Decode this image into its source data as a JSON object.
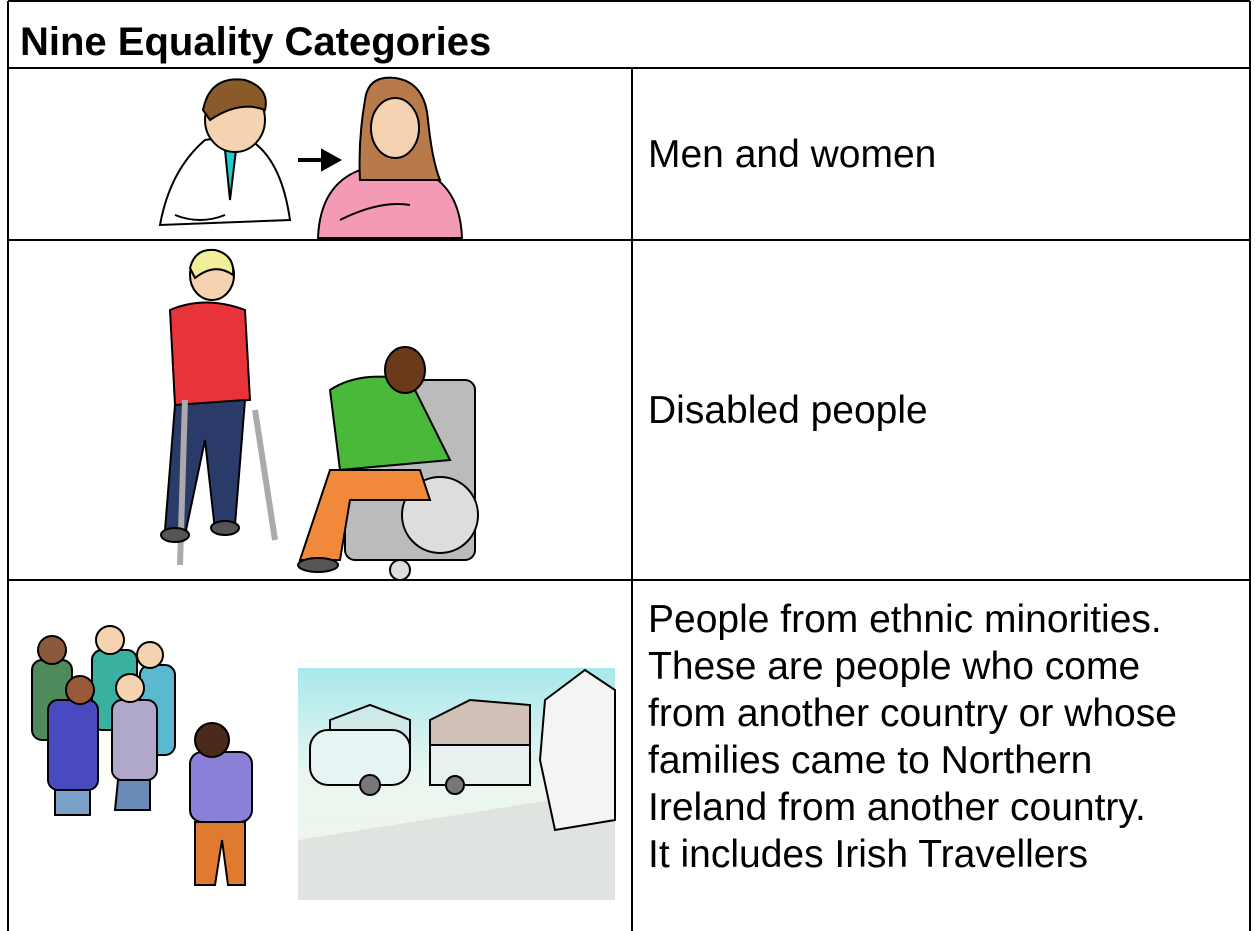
{
  "title": "Nine Equality Categories",
  "rows": [
    {
      "lines": [
        "Men and women"
      ]
    },
    {
      "lines": [
        "Disabled people"
      ]
    },
    {
      "lines": [
        "People from ethnic minorities.",
        "These are people who come",
        "from another country or whose",
        "families came to Northern",
        "Ireland from another country.",
        "It includes Irish Travellers"
      ]
    }
  ]
}
